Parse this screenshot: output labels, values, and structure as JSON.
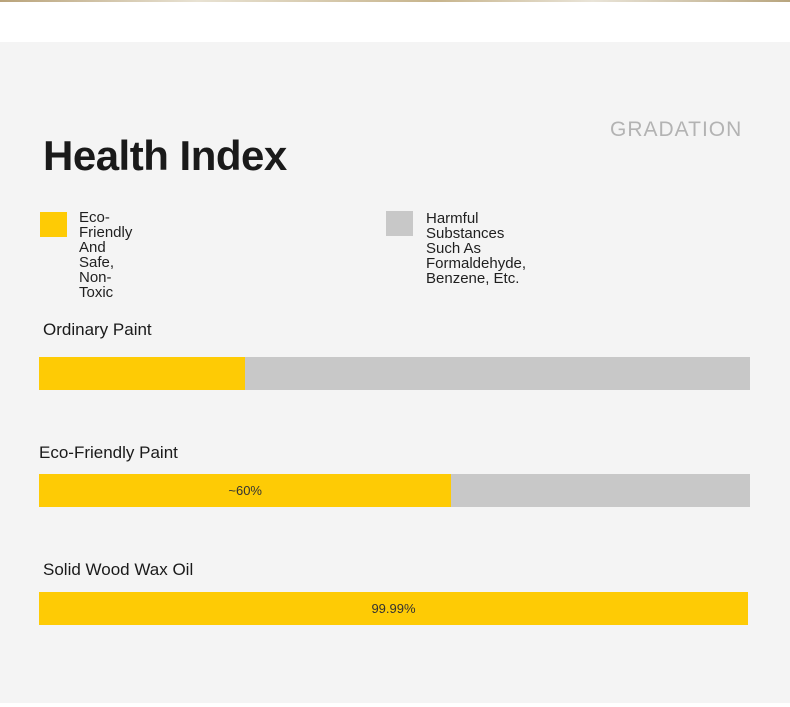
{
  "header": {
    "gradation_label": "GRADATION",
    "title": "Health Index"
  },
  "legend": [
    {
      "label": "Eco-Friendly And Safe,\nNon-Toxic",
      "color": "#fecb05",
      "icon": "yellow-square"
    },
    {
      "label": "Harmful Substances Such As\nFormaldehyde, Benzene, Etc.",
      "color": "#c8c8c8",
      "icon": "gray-square"
    }
  ],
  "chart_data": {
    "type": "bar",
    "orientation": "horizontal",
    "stacked": true,
    "title": "Health Index",
    "categories": [
      "Ordinary Paint",
      "Eco-Friendly Paint",
      "Solid Wood Wax Oil"
    ],
    "series": [
      {
        "name": "Eco-Friendly And Safe, Non-Toxic",
        "values": [
          29,
          58,
          100
        ],
        "color": "#fecb05"
      },
      {
        "name": "Harmful Substances Such As Formaldehyde, Benzene, Etc.",
        "values": [
          71,
          42,
          0
        ],
        "color": "#c8c8c8"
      }
    ],
    "data_labels": [
      "",
      "~60%",
      "99.99%"
    ],
    "xlim": [
      0,
      100
    ],
    "grid": false,
    "legend_position": "top"
  }
}
